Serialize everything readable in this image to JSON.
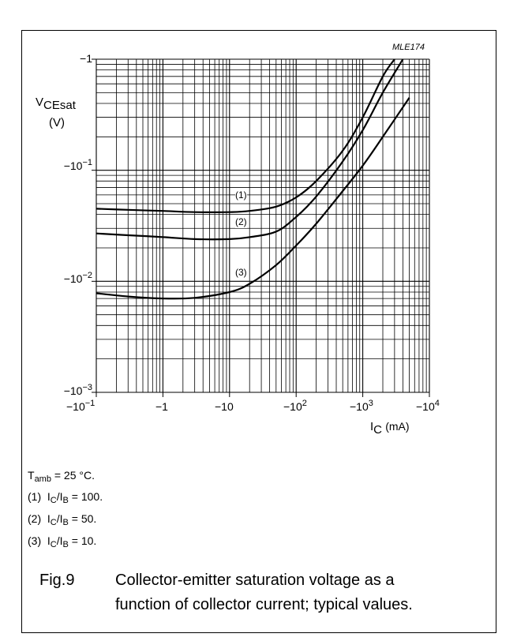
{
  "chart_data": {
    "type": "line",
    "chart_code": "MLE174",
    "x_scale": "log",
    "y_scale": "log",
    "xlim": [
      -0.1,
      -10000
    ],
    "ylim": [
      -0.001,
      -1
    ],
    "x_ticks": [
      {
        "base": "−10",
        "exp": "−1"
      },
      {
        "base": "−1",
        "exp": ""
      },
      {
        "base": "−10",
        "exp": ""
      },
      {
        "base": "−10",
        "exp": "2"
      },
      {
        "base": "−10",
        "exp": "3"
      },
      {
        "base": "−10",
        "exp": "4"
      }
    ],
    "y_ticks": [
      {
        "base": "−1",
        "exp": ""
      },
      {
        "base": "−10",
        "exp": "−1"
      },
      {
        "base": "−10",
        "exp": "−2"
      },
      {
        "base": "−10",
        "exp": "−3"
      }
    ],
    "ylabel": {
      "main": "V",
      "sub": "CEsat",
      "unit": "(V)"
    },
    "xlabel": {
      "main": "I",
      "sub": "C",
      "unit": "(mA)"
    },
    "grid": true,
    "series": [
      {
        "name": "(1)",
        "x": [
          -0.1,
          -0.3,
          -1,
          -3,
          -10,
          -20,
          -50,
          -100,
          -200,
          -500,
          -1000,
          -2000,
          -3000
        ],
        "y": [
          -0.045,
          -0.044,
          -0.043,
          -0.042,
          -0.042,
          -0.043,
          -0.047,
          -0.057,
          -0.08,
          -0.15,
          -0.3,
          -0.7,
          -1.0
        ]
      },
      {
        "name": "(2)",
        "x": [
          -0.1,
          -0.3,
          -1,
          -3,
          -10,
          -20,
          -50,
          -100,
          -200,
          -500,
          -1000,
          -2000,
          -4000
        ],
        "y": [
          -0.027,
          -0.026,
          -0.025,
          -0.024,
          -0.024,
          -0.025,
          -0.028,
          -0.038,
          -0.058,
          -0.12,
          -0.23,
          -0.5,
          -1.0
        ]
      },
      {
        "name": "(3)",
        "x": [
          -0.1,
          -0.3,
          -1,
          -3,
          -10,
          -20,
          -50,
          -100,
          -200,
          -500,
          -1000,
          -2000,
          -5000
        ],
        "y": [
          -0.0078,
          -0.0073,
          -0.007,
          -0.0071,
          -0.008,
          -0.0095,
          -0.014,
          -0.021,
          -0.033,
          -0.065,
          -0.11,
          -0.2,
          -0.45
        ]
      }
    ]
  },
  "notes": {
    "temp": {
      "main": "T",
      "sub": "amb",
      "rest": " = 25 °C."
    },
    "items": [
      {
        "num": "(1)",
        "a": "I",
        "a_sub": "C",
        "b": "/I",
        "b_sub": "B",
        "rest": " = 100."
      },
      {
        "num": "(2)",
        "a": "I",
        "a_sub": "C",
        "b": "/I",
        "b_sub": "B",
        "rest": " = 50."
      },
      {
        "num": "(3)",
        "a": "I",
        "a_sub": "C",
        "b": "/I",
        "b_sub": "B",
        "rest": " = 10."
      }
    ]
  },
  "caption": {
    "fig": "Fig.9",
    "line1": "Collector-emitter saturation voltage as a",
    "line2": "function of collector current; typical values."
  }
}
